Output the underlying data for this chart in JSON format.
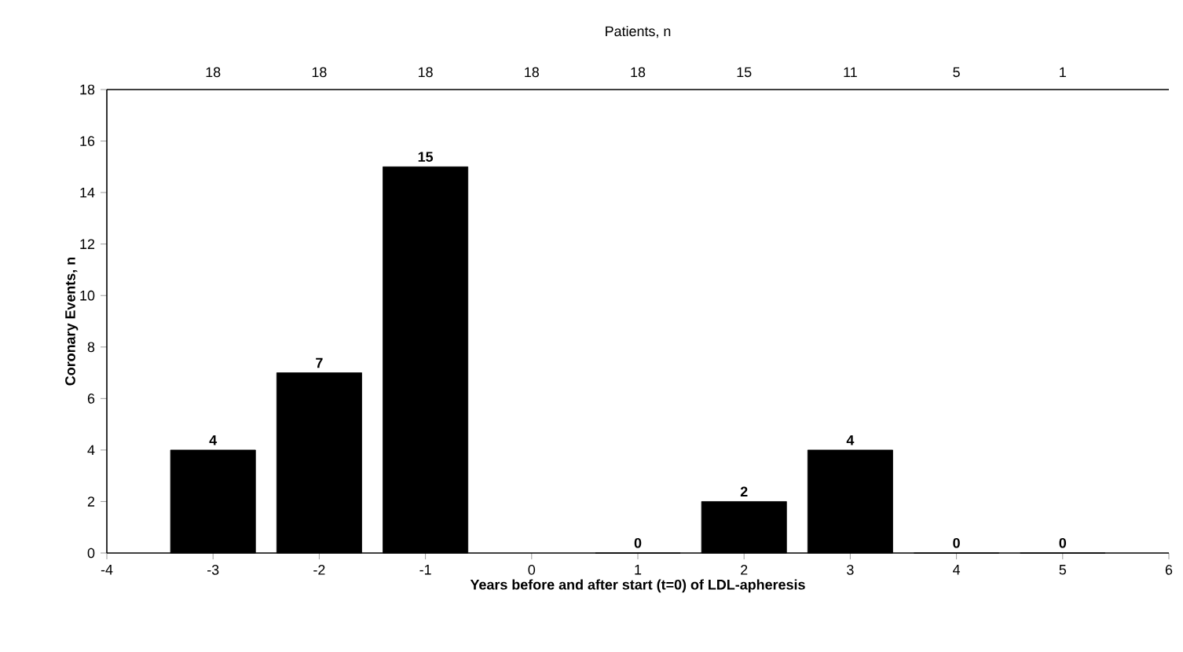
{
  "chart_data": {
    "type": "bar",
    "xlabel": "Years before and after start (t=0) of LDL-apheresis",
    "ylabel": "Coronary Events, n",
    "x": [
      -3,
      -2,
      -1,
      1,
      2,
      3,
      4,
      5
    ],
    "values": [
      4,
      7,
      15,
      0,
      2,
      4,
      0,
      0
    ],
    "color": "#000000",
    "data_labels": true,
    "xlim": [
      -4,
      6
    ],
    "xticks": [
      -4,
      -3,
      -2,
      -1,
      0,
      1,
      2,
      3,
      4,
      5,
      6
    ],
    "ylim": [
      0,
      18
    ],
    "yticks": [
      0,
      2,
      4,
      6,
      8,
      10,
      12,
      14,
      16,
      18
    ],
    "annotations": [
      "Patients, n",
      "18",
      "18",
      "18",
      "18",
      "18",
      "15",
      "11",
      "5",
      "1"
    ]
  }
}
